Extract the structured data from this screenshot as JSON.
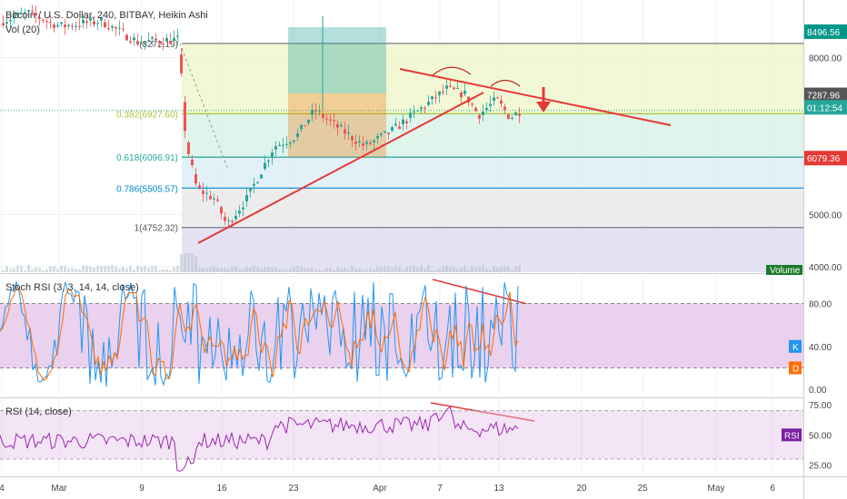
{
  "chart_data": [
    {
      "type": "candlestick",
      "panel": "price",
      "title": "Bitcoin / U.S. Dollar, 240, BITBAY, Heikin Ashi",
      "volume_label": "Vol (20)",
      "volume_badge": "Volume",
      "y_ticks": [
        4000,
        5000,
        8000
      ],
      "y_tick_labels": [
        "4000.00",
        "5000.00",
        "8000.00"
      ],
      "ylim": [
        3950,
        9050
      ],
      "x_ticks": [
        "4",
        "Mar",
        "9",
        "16",
        "23",
        "Apr",
        "7",
        "13",
        "20",
        "25",
        "May",
        "6"
      ],
      "fib_levels": [
        {
          "label": "(8272.19)",
          "value": 8272.19
        },
        {
          "label": "0.382(6927.60)",
          "value": 6927.6
        },
        {
          "label": "0.618(6096.91)",
          "value": 6096.91
        },
        {
          "label": "0.786(5505.57)",
          "value": 5505.57
        },
        {
          "label": "1(4752.32)",
          "value": 4752.32
        }
      ],
      "price_badges": [
        {
          "label": "8496.56",
          "value": 8496.56,
          "color": "#009688"
        },
        {
          "label": "7287.96",
          "value": 7287.96,
          "color": "#555555"
        },
        {
          "label": "01:12:54",
          "value": 7050,
          "color": "#26a69a"
        },
        {
          "label": "6079.36",
          "value": 6079.36,
          "color": "#e53935"
        }
      ]
    },
    {
      "type": "line",
      "panel": "stoch",
      "title": "Stoch RSI (3, 3, 14, 14, close)",
      "y_ticks": [
        0,
        40,
        80
      ],
      "y_tick_labels": [
        "0.00",
        "40.00",
        "80.00"
      ],
      "ylim": [
        -5,
        105
      ],
      "band": [
        20,
        80
      ],
      "series": [
        {
          "name": "K",
          "color": "#2196f3"
        },
        {
          "name": "D",
          "color": "#ff6d00"
        }
      ]
    },
    {
      "type": "line",
      "panel": "rsi",
      "title": "RSI (14, close)",
      "y_ticks": [
        25,
        50,
        75
      ],
      "y_tick_labels": [
        "25.00",
        "50.00",
        "75.00"
      ],
      "ylim": [
        18,
        78
      ],
      "band": [
        30,
        70
      ],
      "series": [
        {
          "name": "RSI",
          "color": "#9c27b0"
        }
      ]
    }
  ]
}
